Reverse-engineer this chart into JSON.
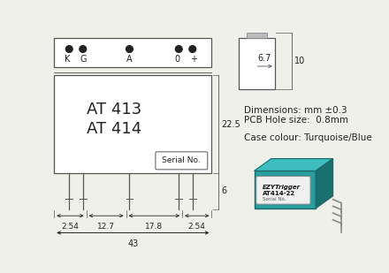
{
  "bg_color": "#f0f0eb",
  "model_text1": "AT 413",
  "model_text2": "AT 414",
  "serial_label": "Serial No.",
  "dim_text1": "Dimensions: mm ±0.3",
  "dim_text2": "PCB Hole size:  0.8mm",
  "dim_text3": "Case colour: Turquoise/Blue",
  "dim_22_5": "22.5",
  "dim_6": "6",
  "dim_43": "43",
  "dim_2_54_l": "2.54",
  "dim_12_7": "12.7",
  "dim_17_8": "17.8",
  "dim_2_54_r": "2.54",
  "dim_6_7": "6.7",
  "dim_10": "10",
  "line_color": "#555555",
  "text_color": "#222222",
  "photo_teal_front": "#2a9d9d",
  "photo_teal_top": "#3dbdbd",
  "photo_teal_right": "#1a7070",
  "photo_teal_edge": "#1a6868"
}
